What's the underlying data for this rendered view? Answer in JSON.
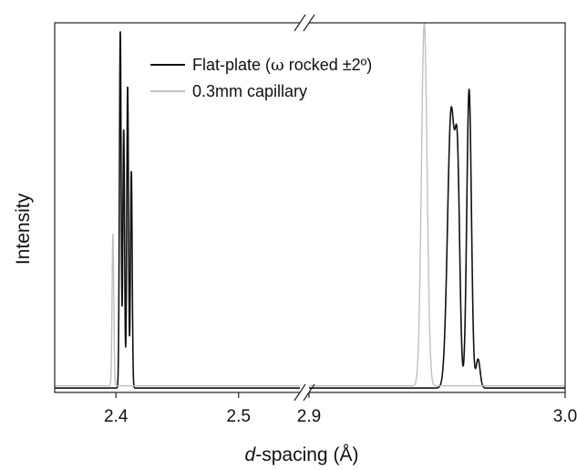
{
  "chart_data": {
    "type": "line",
    "title": "",
    "xlabel_italic": "d",
    "xlabel_rest": "-spacing (Å)",
    "ylabel": "Intensity",
    "y_ticks_shown": false,
    "legend_position": "top-left",
    "x_axis_broken": true,
    "x_segments": [
      {
        "range": [
          2.35,
          2.55
        ],
        "ticks": [
          {
            "value": 2.4,
            "label": "2.4"
          },
          {
            "value": 2.5,
            "label": "2.5"
          }
        ]
      },
      {
        "range": [
          2.9,
          3.0
        ],
        "ticks": [
          {
            "value": 2.9,
            "label": "2.9"
          },
          {
            "value": 3.0,
            "label": "3.0"
          }
        ]
      }
    ],
    "ylim": [
      0,
      1.0
    ],
    "series": [
      {
        "name": "Flat-plate (ω rocked ±2°)",
        "legend_label_part1": "Flat-plate (",
        "legend_label_symbol": "ω",
        "legend_label_part2": " rocked ±2º)",
        "color": "#111111",
        "baseline": 0.012,
        "peaks": [
          {
            "x": 2.4035,
            "height": 0.98,
            "width": 0.0007
          },
          {
            "x": 2.4063,
            "height": 0.71,
            "width": 0.0007
          },
          {
            "x": 2.4095,
            "height": 0.83,
            "width": 0.0007
          },
          {
            "x": 2.4125,
            "height": 0.6,
            "width": 0.0007
          },
          {
            "x": 2.9555,
            "height": 0.76,
            "width": 0.0014
          },
          {
            "x": 2.958,
            "height": 0.53,
            "width": 0.0009
          },
          {
            "x": 2.9625,
            "height": 0.82,
            "width": 0.0009
          },
          {
            "x": 2.966,
            "height": 0.09,
            "width": 0.0008
          }
        ]
      },
      {
        "name": "0.3mm capillary",
        "color": "#c0c0c0",
        "baseline": 0.018,
        "peaks": [
          {
            "x": 2.3975,
            "height": 0.43,
            "width": 0.0007
          },
          {
            "x": 2.945,
            "height": 1.0,
            "width": 0.0011
          }
        ]
      }
    ]
  }
}
